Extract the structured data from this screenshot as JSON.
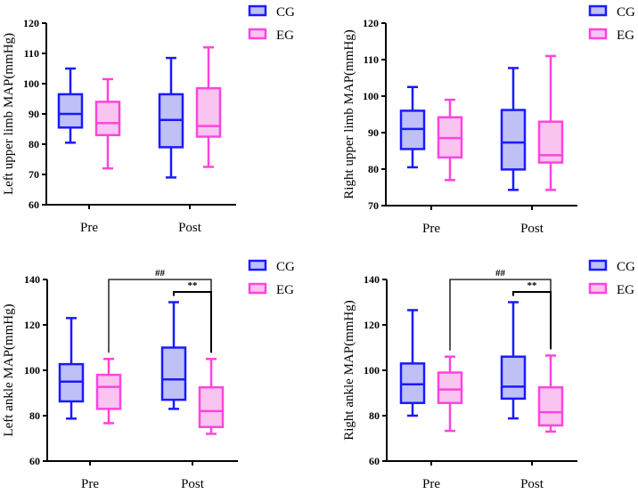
{
  "colors": {
    "CG_stroke": "#1a1aff",
    "CG_fill": "#bfc0f5",
    "EG_stroke": "#ff44dd",
    "EG_fill": "#f9c4f0",
    "axis": "#000000"
  },
  "chart_data": [
    {
      "type": "box",
      "ylabel": "Left upper limb MAP(mmHg)",
      "categories": [
        "Pre",
        "Post"
      ],
      "ylim": [
        60,
        120
      ],
      "yticks": [
        60,
        70,
        80,
        90,
        100,
        110,
        120
      ],
      "legend": "top-right",
      "series": [
        {
          "name": "CG",
          "boxes": [
            {
              "min": 80.5,
              "q1": 85.5,
              "median": 90,
              "q3": 96.5,
              "max": 105
            },
            {
              "min": 69,
              "q1": 79,
              "median": 88,
              "q3": 96.5,
              "max": 108.5
            }
          ]
        },
        {
          "name": "EG",
          "boxes": [
            {
              "min": 72,
              "q1": 83,
              "median": 87,
              "q3": 94,
              "max": 101.5
            },
            {
              "min": 72.5,
              "q1": 82.5,
              "median": 86,
              "q3": 98.5,
              "max": 112
            }
          ]
        }
      ],
      "annotations": []
    },
    {
      "type": "box",
      "ylabel": "Right upper limb MAP(mmHg)",
      "categories": [
        "Pre",
        "Post"
      ],
      "ylim": [
        70,
        120
      ],
      "yticks": [
        70,
        80,
        90,
        100,
        110,
        120
      ],
      "legend": "top-right",
      "series": [
        {
          "name": "CG",
          "boxes": [
            {
              "min": 80.5,
              "q1": 85.5,
              "median": 91,
              "q3": 96,
              "max": 102.5
            },
            {
              "min": 74.3,
              "q1": 79.9,
              "median": 87.3,
              "q3": 96.2,
              "max": 107.7
            }
          ]
        },
        {
          "name": "EG",
          "boxes": [
            {
              "min": 77,
              "q1": 83.2,
              "median": 88.5,
              "q3": 94.2,
              "max": 99
            },
            {
              "min": 74.3,
              "q1": 81.8,
              "median": 83.8,
              "q3": 93,
              "max": 111
            }
          ]
        }
      ],
      "annotations": []
    },
    {
      "type": "box",
      "ylabel": "Left ankle MAP(mmHg)",
      "categories": [
        "Pre",
        "Post"
      ],
      "ylim": [
        60,
        140
      ],
      "yticks": [
        60,
        80,
        100,
        120,
        140
      ],
      "legend": "top-right",
      "series": [
        {
          "name": "CG",
          "boxes": [
            {
              "min": 78.7,
              "q1": 86.3,
              "median": 95,
              "q3": 102.7,
              "max": 123
            },
            {
              "min": 83,
              "q1": 87,
              "median": 96,
              "q3": 110,
              "max": 130
            }
          ]
        },
        {
          "name": "EG",
          "boxes": [
            {
              "min": 76.7,
              "q1": 83,
              "median": 92.7,
              "q3": 98,
              "max": 105
            },
            {
              "min": 72,
              "q1": 75,
              "median": 82,
              "q3": 92.5,
              "max": 105
            }
          ]
        }
      ],
      "annotations": [
        {
          "label": "##",
          "from": [
            "EG",
            "Pre"
          ],
          "to": [
            "EG",
            "Post"
          ],
          "level": 140
        },
        {
          "label": "**",
          "from": [
            "CG",
            "Post"
          ],
          "to": [
            "EG",
            "Post"
          ],
          "level": 134.5
        }
      ]
    },
    {
      "type": "box",
      "ylabel": "Right ankle MAP(mmHg)",
      "categories": [
        "Pre",
        "Post"
      ],
      "ylim": [
        60,
        140
      ],
      "yticks": [
        60,
        80,
        100,
        120,
        140
      ],
      "legend": "top-right",
      "series": [
        {
          "name": "CG",
          "boxes": [
            {
              "min": 80,
              "q1": 85.6,
              "median": 93.8,
              "q3": 103,
              "max": 126.5
            },
            {
              "min": 78.8,
              "q1": 87.5,
              "median": 92.8,
              "q3": 106,
              "max": 130
            }
          ]
        },
        {
          "name": "EG",
          "boxes": [
            {
              "min": 73.3,
              "q1": 85.6,
              "median": 91.5,
              "q3": 99,
              "max": 106
            },
            {
              "min": 73,
              "q1": 75.7,
              "median": 81.5,
              "q3": 92.5,
              "max": 106.5
            }
          ]
        }
      ],
      "annotations": [
        {
          "label": "##",
          "from": [
            "EG",
            "Pre"
          ],
          "to": [
            "EG",
            "Post"
          ],
          "level": 140
        },
        {
          "label": "**",
          "from": [
            "CG",
            "Post"
          ],
          "to": [
            "EG",
            "Post"
          ],
          "level": 134.5
        }
      ]
    }
  ]
}
